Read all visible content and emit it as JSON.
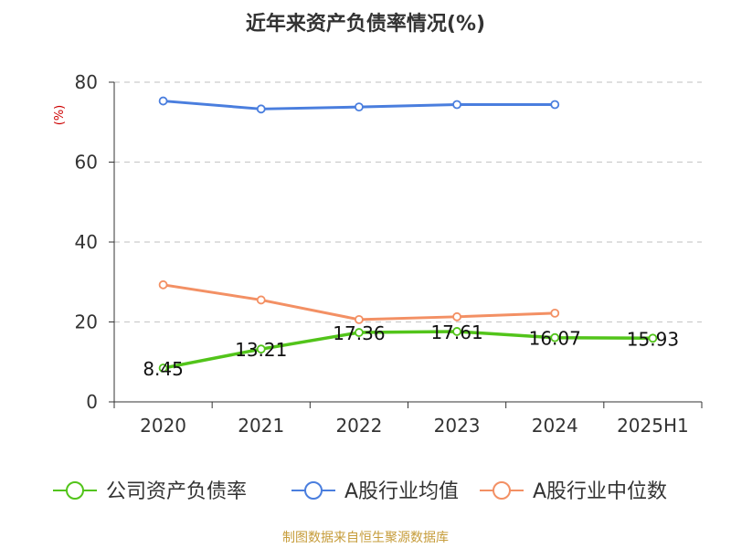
{
  "title": "近年来资产负债率情况(%)",
  "source": "制图数据来自恒生聚源数据库",
  "chart_data": {
    "type": "line",
    "title": "近年来资产负债率情况(%)",
    "ylabel": "(%)",
    "xlabel": "",
    "ylim": [
      0,
      80
    ],
    "yticks": [
      "0",
      "20",
      "40",
      "60",
      "80"
    ],
    "categories": [
      "2020",
      "2021",
      "2022",
      "2023",
      "2024",
      "2025H1"
    ],
    "grid": true,
    "legend_position": "bottom",
    "series": [
      {
        "name": "公司资产负债率",
        "color": "#52c41a",
        "values": [
          8.45,
          13.21,
          17.36,
          17.61,
          16.07,
          15.93
        ],
        "labels": [
          "8.45",
          "13.21",
          "17.36",
          "17.61",
          "16.07",
          "15.93"
        ]
      },
      {
        "name": "A股行业均值",
        "color": "#4a7ede",
        "values": [
          75.3,
          73.3,
          73.8,
          74.4,
          74.4,
          null
        ]
      },
      {
        "name": "A股行业中位数",
        "color": "#f39064",
        "values": [
          29.3,
          25.5,
          20.6,
          21.3,
          22.2,
          null
        ]
      }
    ]
  }
}
